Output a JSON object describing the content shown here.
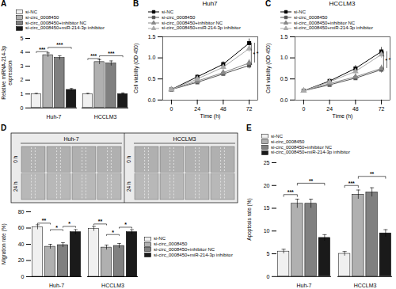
{
  "chart_data": [
    {
      "type": "bar",
      "annotations": [
        {
          "text": "A"
        },
        {
          "text": "***",
          "category": "Huh-7",
          "between": [
            "si-NC",
            "si-circ_0008450"
          ],
          "y": 4.05
        },
        {
          "text": "***",
          "category": "Huh-7",
          "between": [
            "si-circ_0008450",
            "si-circ_0008450+miR-214-3p inhibitor"
          ],
          "y": 4.35
        },
        {
          "text": "***",
          "category": "HCCLM3",
          "between": [
            "si-NC",
            "si-circ_0008450"
          ],
          "y": 3.55
        },
        {
          "text": "***",
          "category": "HCCLM3",
          "between": [
            "si-circ_0008450",
            "si-circ_0008450+miR-214-3p inhibitor"
          ],
          "y": 3.75
        }
      ],
      "ylabel": "Relative miRNA-214-3p\nexpression",
      "categories": [
        "Huh-7",
        "HCCLM3"
      ],
      "series": [
        {
          "name": "si-NC",
          "color": "#f0f0f0",
          "values": [
            1.0,
            1.0
          ],
          "errors": [
            0.05,
            0.05
          ]
        },
        {
          "name": "si-circ_0008450",
          "color": "#b0b0b0",
          "values": [
            3.8,
            3.3
          ],
          "errors": [
            0.15,
            0.18
          ]
        },
        {
          "name": "si-circ_0008450+inhibitor NC",
          "color": "#808080",
          "values": [
            3.6,
            3.2
          ],
          "errors": [
            0.15,
            0.18
          ]
        },
        {
          "name": "si-circ_0008450+miR-214-3p inhibitor",
          "color": "#1a1a1a",
          "values": [
            1.3,
            1.0
          ],
          "errors": [
            0.1,
            0.08
          ]
        }
      ],
      "ylim": [
        0,
        5
      ],
      "yticks": [
        0,
        1,
        2,
        3,
        4,
        5
      ],
      "legend": "top"
    },
    {
      "type": "line",
      "title": "Huh7",
      "annotations": [
        {
          "text": "B"
        },
        {
          "text": "*",
          "x": 74,
          "y": [
            0.82,
            1.35
          ]
        },
        {
          "text": "*",
          "x": 77,
          "y": [
            0.88,
            1.35
          ]
        }
      ],
      "xlabel": "Time (h)",
      "ylabel": "Cell viability (OD 450)",
      "x": [
        0,
        24,
        48,
        72
      ],
      "series": [
        {
          "name": "si-NC",
          "color": "#000000",
          "marker": "square",
          "values": [
            0.25,
            0.55,
            0.85,
            1.35
          ],
          "errors": [
            0.02,
            0.05,
            0.06,
            0.1
          ]
        },
        {
          "name": "si-circ_0008450",
          "color": "#555555",
          "marker": "square",
          "values": [
            0.25,
            0.42,
            0.62,
            0.82
          ],
          "errors": [
            0.02,
            0.04,
            0.05,
            0.08
          ]
        },
        {
          "name": "si-circ_0008450+inhibitor NC",
          "color": "#888888",
          "marker": "triangle",
          "values": [
            0.25,
            0.45,
            0.65,
            0.88
          ],
          "errors": [
            0.02,
            0.04,
            0.05,
            0.08
          ]
        },
        {
          "name": "si-circ_0008450+miR-214-3p inhibitor",
          "color": "#aaaaaa",
          "marker": "triangle",
          "values": [
            0.25,
            0.5,
            0.78,
            1.22
          ],
          "errors": [
            0.02,
            0.04,
            0.06,
            0.09
          ]
        }
      ],
      "xlim": [
        -8,
        80
      ],
      "xticks": [
        0,
        24,
        48,
        72
      ],
      "ylim": [
        0.0,
        1.5
      ],
      "yticks": [
        {
          "value": 0,
          "label": "0.0"
        },
        0.5,
        {
          "value": 1,
          "label": "1.0"
        },
        1.5
      ],
      "legend": "top"
    },
    {
      "type": "line",
      "title": "HCCLM3",
      "annotations": [
        {
          "text": "C"
        },
        {
          "text": "*",
          "x": 74,
          "y": [
            0.72,
            1.15
          ]
        },
        {
          "text": "*",
          "x": 77,
          "y": [
            0.75,
            1.15
          ]
        }
      ],
      "xlabel": "Time (h)",
      "ylabel": "Cell viability (OD 450)",
      "x": [
        0,
        24,
        48,
        72
      ],
      "series": [
        {
          "name": "si-NC",
          "color": "#000000",
          "marker": "square",
          "values": [
            0.22,
            0.45,
            0.75,
            1.15
          ],
          "errors": [
            0.02,
            0.05,
            0.07,
            0.1
          ]
        },
        {
          "name": "si-circ_0008450",
          "color": "#555555",
          "marker": "square",
          "values": [
            0.22,
            0.36,
            0.52,
            0.72
          ],
          "errors": [
            0.02,
            0.04,
            0.05,
            0.08
          ]
        },
        {
          "name": "si-circ_0008450+inhibitor NC",
          "color": "#888888",
          "marker": "triangle",
          "values": [
            0.22,
            0.39,
            0.55,
            0.75
          ],
          "errors": [
            0.02,
            0.04,
            0.05,
            0.08
          ]
        },
        {
          "name": "si-circ_0008450+miR-214-3p inhibitor",
          "color": "#aaaaaa",
          "marker": "triangle",
          "values": [
            0.22,
            0.43,
            0.68,
            1.08
          ],
          "errors": [
            0.02,
            0.04,
            0.06,
            0.09
          ]
        }
      ],
      "xlim": [
        -8,
        80
      ],
      "xticks": [
        0,
        24,
        48,
        72
      ],
      "ylim": [
        0.0,
        1.5
      ],
      "yticks": [
        {
          "value": 0,
          "label": "0.0"
        },
        0.5,
        {
          "value": 1,
          "label": "1.0"
        },
        1.5
      ],
      "legend": "top"
    },
    {
      "type": "image_grid",
      "annotations": [
        {
          "text": "D"
        }
      ],
      "categories": [
        "Huh-7",
        "HCCLM3"
      ],
      "rows": [
        "0 h",
        "24 h"
      ]
    },
    {
      "type": "bar",
      "annotations": [
        {
          "text": "**",
          "category": "Huh-7",
          "between": [
            "si-NC",
            "si-circ_0008450"
          ],
          "y": 66
        },
        {
          "text": "*",
          "category": "Huh-7",
          "between": [
            "si-circ_0008450",
            "si-circ_0008450+inhibitor NC"
          ],
          "y": 58
        },
        {
          "text": "*",
          "category": "Huh-7",
          "between": [
            "si-circ_0008450+inhibitor NC",
            "si-circ_0008450+miR-214-3p inhibitor"
          ],
          "y": 62
        },
        {
          "text": "**",
          "category": "HCCLM3",
          "between": [
            "si-NC",
            "si-circ_0008450"
          ],
          "y": 65
        },
        {
          "text": "*",
          "category": "HCCLM3",
          "between": [
            "si-circ_0008450",
            "si-circ_0008450+inhibitor NC"
          ],
          "y": 52
        },
        {
          "text": "*",
          "category": "HCCLM3",
          "between": [
            "si-circ_0008450+inhibitor NC",
            "si-circ_0008450+miR-214-3p inhibitor"
          ],
          "y": 61
        }
      ],
      "ylabel": "Migration rate (%)",
      "categories": [
        "Huh-7",
        "HCCLM3"
      ],
      "series": [
        {
          "name": "si-NC",
          "color": "#f0f0f0",
          "values": [
            61,
            59
          ],
          "errors": [
            3,
            3
          ]
        },
        {
          "name": "si-circ_0008450",
          "color": "#b0b0b0",
          "values": [
            37,
            36
          ],
          "errors": [
            3,
            3
          ]
        },
        {
          "name": "si-circ_0008450+inhibitor NC",
          "color": "#808080",
          "values": [
            39,
            38
          ],
          "errors": [
            3,
            3
          ]
        },
        {
          "name": "si-circ_0008450+miR-214-3p inhibitor",
          "color": "#1a1a1a",
          "values": [
            55,
            55
          ],
          "errors": [
            3,
            3
          ]
        }
      ],
      "ylim": [
        0,
        80
      ],
      "yticks": [
        0,
        20,
        40,
        60,
        80
      ],
      "legend": "right"
    },
    {
      "type": "bar",
      "annotations": [
        {
          "text": "E"
        },
        {
          "text": "***",
          "category": "Huh-7",
          "between": [
            "si-NC",
            "si-circ_0008450"
          ],
          "y": 18
        },
        {
          "text": "**",
          "category": "Huh-7",
          "between": [
            "si-circ_0008450",
            "si-circ_0008450+miR-214-3p inhibitor"
          ],
          "y": 20.5
        },
        {
          "text": "***",
          "category": "HCCLM3",
          "between": [
            "si-NC",
            "si-circ_0008450"
          ],
          "y": 20
        },
        {
          "text": "**",
          "category": "HCCLM3",
          "between": [
            "si-circ_0008450",
            "si-circ_0008450+miR-214-3p inhibitor"
          ],
          "y": 22
        }
      ],
      "ylabel": "Apoptosis rate (%)",
      "categories": [
        "Huh-7",
        "HCCLM3"
      ],
      "series": [
        {
          "name": "si-NC",
          "color": "#f0f0f0",
          "values": [
            5.5,
            5.0
          ],
          "errors": [
            0.5,
            0.5
          ]
        },
        {
          "name": "si-circ_0008450",
          "color": "#b0b0b0",
          "values": [
            16.0,
            18.0
          ],
          "errors": [
            1.0,
            1.0
          ]
        },
        {
          "name": "si-circ_0008450+inhibitor NC",
          "color": "#808080",
          "values": [
            16.0,
            18.5
          ],
          "errors": [
            1.0,
            1.0
          ]
        },
        {
          "name": "si-circ_0008450+miR-214-3p inhibitor",
          "color": "#1a1a1a",
          "values": [
            8.5,
            9.5
          ],
          "errors": [
            0.7,
            0.8
          ]
        }
      ],
      "ylim": [
        0,
        25
      ],
      "yticks": [
        0,
        5,
        10,
        15,
        20,
        25
      ],
      "legend": "top"
    }
  ]
}
